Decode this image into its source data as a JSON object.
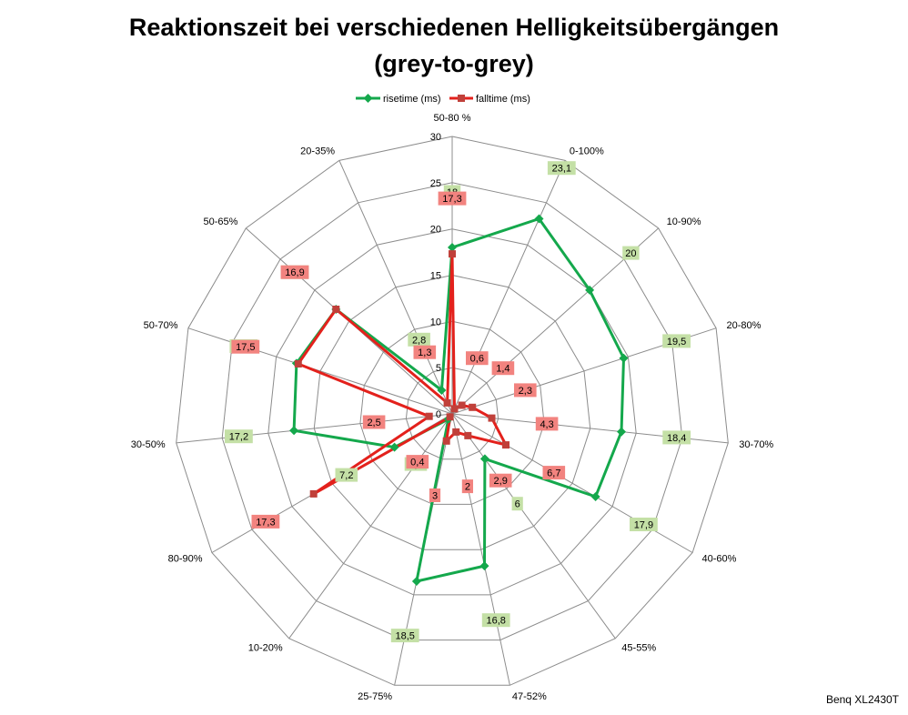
{
  "footer_caption": "Benq XL2430T",
  "chart_data": {
    "type": "radar",
    "title": "Reaktionszeit bei verschiedenen Helligkeitsübergängen (grey-to-grey)",
    "categories": [
      "50-80 %",
      "0-100%",
      "10-90%",
      "20-80%",
      "30-70%",
      "40-60%",
      "45-55%",
      "47-52%",
      "25-75%",
      "10-20%",
      "80-90%",
      "30-50%",
      "50-70%",
      "50-65%",
      "20-35%"
    ],
    "series": [
      {
        "name": "risetime (ms)",
        "values": [
          18,
          23.1,
          20,
          19.5,
          18.4,
          17.9,
          6,
          16.8,
          18.5,
          0.7,
          7.2,
          17.2,
          17.7,
          16.9,
          2.8
        ],
        "color": "#14a84c",
        "marker": "diamond",
        "marker_color": "#14a84c",
        "label_fill": "#c4e0a6"
      },
      {
        "name": "falltime (ms)",
        "values": [
          17.3,
          0.6,
          1.4,
          2.3,
          4.3,
          6.7,
          2.9,
          2,
          3,
          0.4,
          17.3,
          2.5,
          17.5,
          16.9,
          1.3
        ],
        "color": "#e3211c",
        "marker": "square",
        "marker_color": "#c0403a",
        "label_fill": "#f2837f"
      }
    ],
    "r_ticks": [
      0,
      5,
      10,
      15,
      20,
      25,
      30
    ],
    "rlim": [
      0,
      30
    ],
    "grid": true,
    "grid_color": "#8c8c8c",
    "legend": "top",
    "data_labels": true
  }
}
